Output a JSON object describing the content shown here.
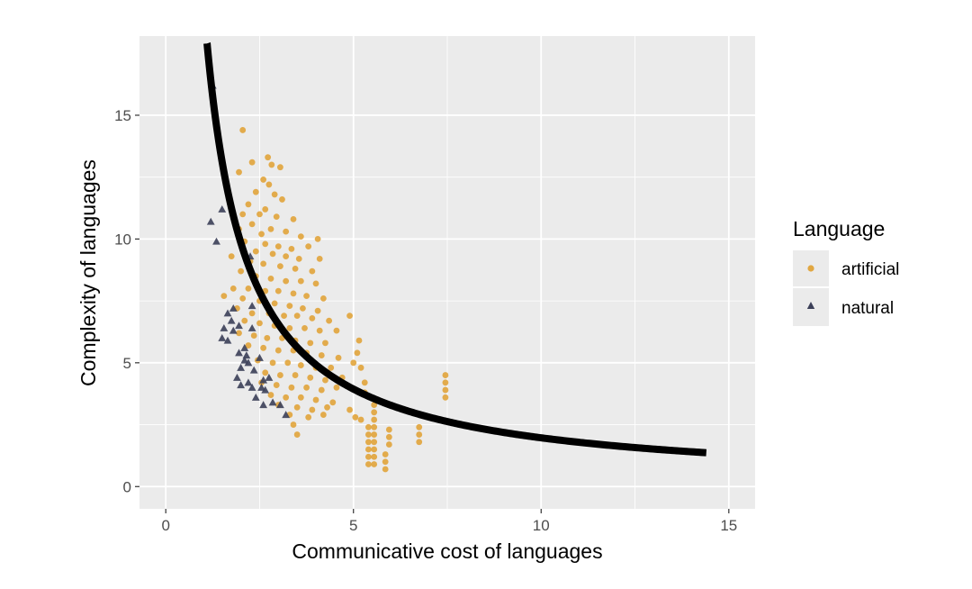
{
  "chart_data": {
    "type": "scatter",
    "xlabel": "Communicative cost of languages",
    "ylabel": "Complexity of languages",
    "xlim": [
      -0.7,
      15.7
    ],
    "ylim": [
      -0.9,
      18.2
    ],
    "x_ticks": [
      0,
      5,
      10,
      15
    ],
    "y_ticks": [
      0,
      5,
      10,
      15
    ],
    "grid": true,
    "legend": {
      "title": "Language",
      "placement": "right",
      "entries": [
        {
          "label": "artificial",
          "shape": "circle",
          "color": "#E0A030"
        },
        {
          "label": "natural",
          "shape": "triangle",
          "color": "#3B3F58"
        }
      ]
    },
    "series": [
      {
        "name": "artificial",
        "shape": "circle",
        "color": "#E0A030",
        "points": [
          [
            2.05,
            14.4
          ],
          [
            2.72,
            13.3
          ],
          [
            2.82,
            13.0
          ],
          [
            2.3,
            13.1
          ],
          [
            1.95,
            12.7
          ],
          [
            3.05,
            12.9
          ],
          [
            2.6,
            12.4
          ],
          [
            2.75,
            12.2
          ],
          [
            2.4,
            11.9
          ],
          [
            2.9,
            11.8
          ],
          [
            3.1,
            11.6
          ],
          [
            2.2,
            11.4
          ],
          [
            2.65,
            11.2
          ],
          [
            2.5,
            11.0
          ],
          [
            2.05,
            11.0
          ],
          [
            2.95,
            10.9
          ],
          [
            3.4,
            10.8
          ],
          [
            2.3,
            10.6
          ],
          [
            2.8,
            10.4
          ],
          [
            3.2,
            10.3
          ],
          [
            1.95,
            10.4
          ],
          [
            2.55,
            10.2
          ],
          [
            3.6,
            10.1
          ],
          [
            4.05,
            10.0
          ],
          [
            2.1,
            9.9
          ],
          [
            2.65,
            9.8
          ],
          [
            3.0,
            9.7
          ],
          [
            3.35,
            9.6
          ],
          [
            3.8,
            9.7
          ],
          [
            2.4,
            9.5
          ],
          [
            2.85,
            9.4
          ],
          [
            3.2,
            9.3
          ],
          [
            3.55,
            9.2
          ],
          [
            4.1,
            9.2
          ],
          [
            1.75,
            9.3
          ],
          [
            2.25,
            9.1
          ],
          [
            2.6,
            9.0
          ],
          [
            3.05,
            8.9
          ],
          [
            3.45,
            8.8
          ],
          [
            3.9,
            8.7
          ],
          [
            2.0,
            8.7
          ],
          [
            2.4,
            8.5
          ],
          [
            2.8,
            8.4
          ],
          [
            3.2,
            8.3
          ],
          [
            3.6,
            8.3
          ],
          [
            4.0,
            8.2
          ],
          [
            1.8,
            8.0
          ],
          [
            2.2,
            8.0
          ],
          [
            2.65,
            7.9
          ],
          [
            3.0,
            7.9
          ],
          [
            3.4,
            7.8
          ],
          [
            3.75,
            7.7
          ],
          [
            4.2,
            7.6
          ],
          [
            1.55,
            7.7
          ],
          [
            2.05,
            7.6
          ],
          [
            2.5,
            7.5
          ],
          [
            2.9,
            7.4
          ],
          [
            3.3,
            7.3
          ],
          [
            3.65,
            7.2
          ],
          [
            4.05,
            7.1
          ],
          [
            1.9,
            7.2
          ],
          [
            2.3,
            7.0
          ],
          [
            2.75,
            7.0
          ],
          [
            3.15,
            6.9
          ],
          [
            3.5,
            6.9
          ],
          [
            3.9,
            6.8
          ],
          [
            4.35,
            6.7
          ],
          [
            4.9,
            6.9
          ],
          [
            2.1,
            6.7
          ],
          [
            2.5,
            6.6
          ],
          [
            2.9,
            6.5
          ],
          [
            3.3,
            6.4
          ],
          [
            3.7,
            6.4
          ],
          [
            4.1,
            6.3
          ],
          [
            4.55,
            6.3
          ],
          [
            1.95,
            6.2
          ],
          [
            2.35,
            6.1
          ],
          [
            2.7,
            6.0
          ],
          [
            3.1,
            6.0
          ],
          [
            3.45,
            5.9
          ],
          [
            3.85,
            5.8
          ],
          [
            4.25,
            5.8
          ],
          [
            5.15,
            5.9
          ],
          [
            2.2,
            5.7
          ],
          [
            2.6,
            5.6
          ],
          [
            3.0,
            5.5
          ],
          [
            3.4,
            5.5
          ],
          [
            3.75,
            5.4
          ],
          [
            4.15,
            5.3
          ],
          [
            4.6,
            5.2
          ],
          [
            5.1,
            5.4
          ],
          [
            2.45,
            5.1
          ],
          [
            2.85,
            5.0
          ],
          [
            3.25,
            5.0
          ],
          [
            3.6,
            4.9
          ],
          [
            4.0,
            4.8
          ],
          [
            4.4,
            4.8
          ],
          [
            5.0,
            5.0
          ],
          [
            5.2,
            4.8
          ],
          [
            2.65,
            4.6
          ],
          [
            3.05,
            4.5
          ],
          [
            3.45,
            4.5
          ],
          [
            3.85,
            4.4
          ],
          [
            4.25,
            4.3
          ],
          [
            4.7,
            4.4
          ],
          [
            2.55,
            4.2
          ],
          [
            2.95,
            4.1
          ],
          [
            3.35,
            4.0
          ],
          [
            3.75,
            4.0
          ],
          [
            4.15,
            3.9
          ],
          [
            4.55,
            4.0
          ],
          [
            5.3,
            4.2
          ],
          [
            2.8,
            3.7
          ],
          [
            3.2,
            3.6
          ],
          [
            3.6,
            3.6
          ],
          [
            4.0,
            3.5
          ],
          [
            4.45,
            3.4
          ],
          [
            5.3,
            3.8
          ],
          [
            3.0,
            3.3
          ],
          [
            3.5,
            3.2
          ],
          [
            3.9,
            3.1
          ],
          [
            4.3,
            3.2
          ],
          [
            4.9,
            3.1
          ],
          [
            3.3,
            2.9
          ],
          [
            3.8,
            2.8
          ],
          [
            4.2,
            2.9
          ],
          [
            5.05,
            2.8
          ],
          [
            5.2,
            2.7
          ],
          [
            3.4,
            2.5
          ],
          [
            3.5,
            2.1
          ],
          [
            5.4,
            2.4
          ],
          [
            5.4,
            2.1
          ],
          [
            5.4,
            1.8
          ],
          [
            5.4,
            1.5
          ],
          [
            5.4,
            1.2
          ],
          [
            5.4,
            0.9
          ],
          [
            5.55,
            3.3
          ],
          [
            5.55,
            3.0
          ],
          [
            5.55,
            2.7
          ],
          [
            5.55,
            2.4
          ],
          [
            5.55,
            2.1
          ],
          [
            5.55,
            1.8
          ],
          [
            5.55,
            1.5
          ],
          [
            5.55,
            1.2
          ],
          [
            5.55,
            0.9
          ],
          [
            5.85,
            1.3
          ],
          [
            5.85,
            1.0
          ],
          [
            5.85,
            0.7
          ],
          [
            5.95,
            2.3
          ],
          [
            5.95,
            2.0
          ],
          [
            5.95,
            1.7
          ],
          [
            6.75,
            2.4
          ],
          [
            6.75,
            2.1
          ],
          [
            6.75,
            1.8
          ],
          [
            7.45,
            4.5
          ],
          [
            7.45,
            4.2
          ],
          [
            7.45,
            3.9
          ],
          [
            7.45,
            3.6
          ]
        ]
      },
      {
        "name": "natural",
        "shape": "triangle",
        "color": "#3B3F58",
        "points": [
          [
            1.25,
            16.2
          ],
          [
            1.5,
            11.2
          ],
          [
            1.2,
            10.7
          ],
          [
            1.35,
            9.9
          ],
          [
            2.25,
            9.3
          ],
          [
            1.65,
            7.0
          ],
          [
            1.8,
            7.2
          ],
          [
            2.3,
            7.3
          ],
          [
            2.85,
            7.0
          ],
          [
            1.75,
            6.7
          ],
          [
            1.95,
            6.5
          ],
          [
            1.55,
            6.4
          ],
          [
            1.8,
            6.3
          ],
          [
            1.5,
            6.0
          ],
          [
            1.65,
            5.9
          ],
          [
            2.1,
            5.6
          ],
          [
            1.95,
            5.4
          ],
          [
            2.15,
            5.3
          ],
          [
            2.5,
            5.2
          ],
          [
            2.1,
            5.1
          ],
          [
            2.2,
            5.0
          ],
          [
            2.0,
            4.8
          ],
          [
            2.35,
            4.7
          ],
          [
            1.9,
            4.4
          ],
          [
            2.6,
            4.3
          ],
          [
            2.2,
            4.2
          ],
          [
            2.3,
            4.0
          ],
          [
            2.55,
            4.0
          ],
          [
            2.75,
            4.4
          ],
          [
            2.65,
            3.9
          ],
          [
            2.4,
            3.6
          ],
          [
            2.6,
            3.3
          ],
          [
            2.85,
            3.4
          ],
          [
            3.05,
            3.3
          ],
          [
            3.2,
            2.9
          ],
          [
            2.3,
            6.4
          ],
          [
            2.0,
            4.1
          ]
        ]
      }
    ],
    "fit_curve": {
      "type": "line",
      "description": "y = 17.9 * 1.1 / x",
      "x_range": [
        1.1,
        14.4
      ],
      "color": "#000000"
    }
  }
}
